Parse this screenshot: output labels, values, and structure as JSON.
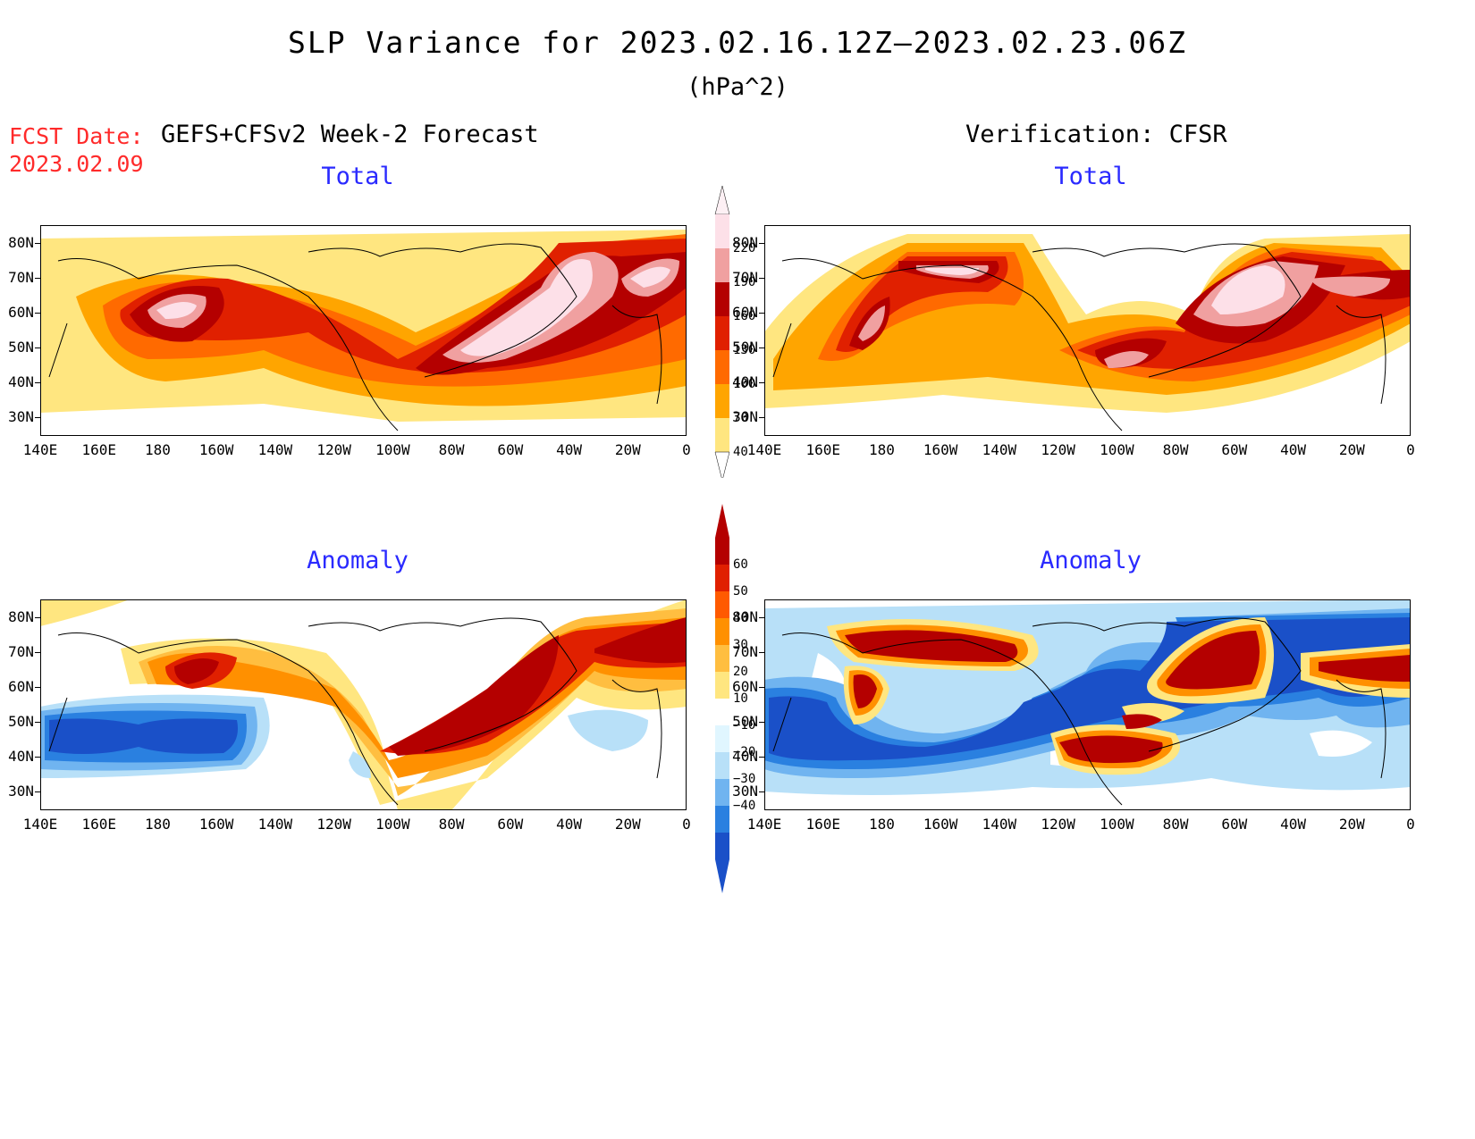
{
  "header": {
    "title": "SLP Variance for 2023.02.16.12Z–2023.02.23.06Z",
    "units": "(hPa^2)",
    "fcst_label": "FCST Date:",
    "fcst_date": "2023.02.09",
    "left_heading": "GEFS+CFSv2 Week-2 Forecast",
    "right_heading": "Verification: CFSR"
  },
  "panels": {
    "forecast_total": {
      "title": "Total"
    },
    "verification_total": {
      "title": "Total"
    },
    "forecast_anomaly": {
      "title": "Anomaly"
    },
    "verification_anomaly": {
      "title": "Anomaly"
    }
  },
  "axes": {
    "lat_labels": [
      "80N",
      "70N",
      "60N",
      "50N",
      "40N",
      "30N"
    ],
    "lon_labels": [
      "140E",
      "160E",
      "180",
      "160W",
      "140W",
      "120W",
      "100W",
      "80W",
      "60W",
      "40W",
      "20W",
      "0"
    ]
  },
  "colorbars": {
    "total": {
      "levels": [
        "40",
        "70",
        "100",
        "130",
        "160",
        "190",
        "220"
      ],
      "colors": [
        "#ffe680",
        "#ffa500",
        "#ff6a00",
        "#e02000",
        "#b40000",
        "#f0a0a0",
        "#fde0e8"
      ]
    },
    "anomaly": {
      "levels": [
        "−40",
        "−30",
        "−20",
        "−10",
        "10",
        "20",
        "30",
        "40",
        "50",
        "60"
      ],
      "colors": [
        "#1a50c8",
        "#2a80e0",
        "#70b4f0",
        "#b8e0f8",
        "#e0f6ff",
        "#ffffff",
        "#ffe680",
        "#ffbe40",
        "#ff9000",
        "#ff5a00",
        "#e02000",
        "#b40000"
      ]
    }
  },
  "colors": {
    "title_blue": "#2a2aff",
    "fcst_red": "#ff2a2a"
  }
}
